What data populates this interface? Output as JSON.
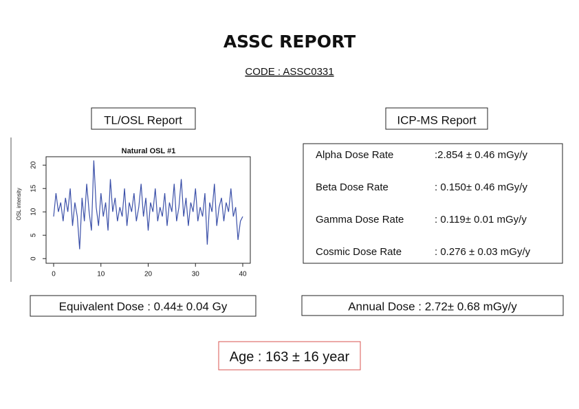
{
  "header": {
    "title": "ASSC REPORT",
    "code": "CODE : ASSC0331"
  },
  "tl_osl": {
    "heading": "TL/OSL Report",
    "result": "Equivalent Dose : 0.44± 0.04 Gy"
  },
  "chart_data": {
    "type": "line",
    "title": "Natural OSL #1",
    "y_label": "OSL intensity",
    "color": "#3a4fa8",
    "x": [
      0,
      0.5,
      1,
      1.5,
      2,
      2.5,
      3,
      3.5,
      4,
      4.5,
      5,
      5.5,
      6,
      6.5,
      7,
      7.5,
      8,
      8.5,
      9,
      9.5,
      10,
      10.5,
      11,
      11.5,
      12,
      12.5,
      13,
      13.5,
      14,
      14.5,
      15,
      15.5,
      16,
      16.5,
      17,
      17.5,
      18,
      18.5,
      19,
      19.5,
      20,
      20.5,
      21,
      21.5,
      22,
      22.5,
      23,
      23.5,
      24,
      24.5,
      25,
      25.5,
      26,
      26.5,
      27,
      27.5,
      28,
      28.5,
      29,
      29.5,
      30,
      30.5,
      31,
      31.5,
      32,
      32.5,
      33,
      33.5,
      34,
      34.5,
      35,
      35.5,
      36,
      36.5,
      37,
      37.5,
      38,
      38.5,
      39,
      39.5,
      40
    ],
    "values": [
      9,
      14,
      10,
      12,
      8,
      13,
      10,
      15,
      7,
      12,
      9,
      2,
      13,
      8,
      16,
      10,
      6,
      21,
      11,
      7,
      14,
      9,
      12,
      6,
      17,
      10,
      13,
      8,
      11,
      9,
      15,
      7,
      12,
      10,
      14,
      8,
      11,
      16,
      9,
      13,
      6,
      12,
      10,
      15,
      8,
      11,
      9,
      14,
      7,
      12,
      10,
      16,
      8,
      11,
      17,
      9,
      13,
      7,
      12,
      10,
      15,
      8,
      11,
      9,
      14,
      3,
      12,
      10,
      16,
      7,
      11,
      13,
      8,
      12,
      10,
      15,
      9,
      11,
      4,
      8,
      9
    ],
    "xlim": [
      -1.6,
      41.6
    ],
    "ylim": [
      -1,
      21.8
    ],
    "xticks": [
      0,
      10,
      20,
      30,
      40
    ],
    "yticks": [
      0,
      5,
      10,
      15,
      20
    ]
  },
  "icp_ms": {
    "heading": "ICP-MS Report",
    "rows": [
      {
        "label": "Alpha Dose Rate",
        "value": ":2.854 ± 0.46 mGy/y"
      },
      {
        "label": "Beta Dose Rate",
        "value": ": 0.150± 0.46 mGy/y"
      },
      {
        "label": "Gamma Dose Rate",
        "value": ": 0.119± 0.01 mGy/y"
      },
      {
        "label": "Cosmic Dose Rate",
        "value": ": 0.276 ± 0.03 mGy/y"
      }
    ],
    "result": "Annual Dose : 2.72± 0.68 mGy/y"
  },
  "age": "Age : 163 ± 16 year"
}
